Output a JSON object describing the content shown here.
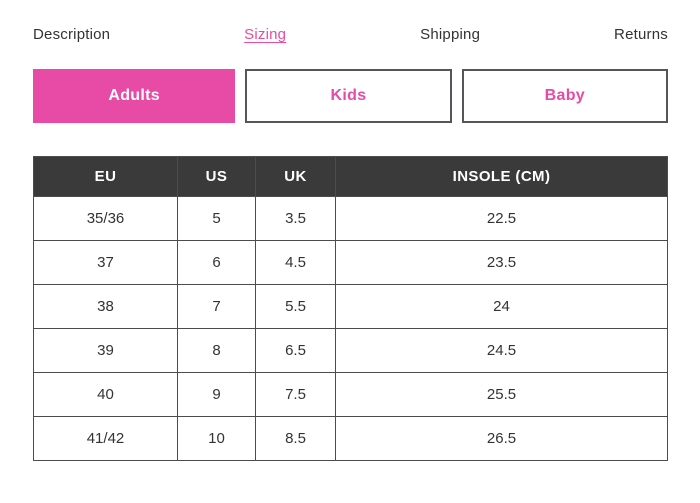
{
  "colors": {
    "accent_pink": "#e74ba6",
    "table_header_dark": "#3a3a3a",
    "table_border": "#4c4c4c",
    "body_text": "#333333"
  },
  "nav": {
    "items": [
      {
        "label": "Description",
        "active": false
      },
      {
        "label": "Sizing",
        "active": true
      },
      {
        "label": "Shipping",
        "active": false
      },
      {
        "label": "Returns",
        "active": false
      }
    ]
  },
  "size_tabs": {
    "buttons": [
      {
        "label": "Adults",
        "selected": true
      },
      {
        "label": "Kids",
        "selected": false
      },
      {
        "label": "Baby",
        "selected": false
      }
    ]
  },
  "table": {
    "headers": [
      "EU",
      "US",
      "UK",
      "INSOLE (CM)"
    ],
    "rows": [
      [
        "35/36",
        "5",
        "3.5",
        "22.5"
      ],
      [
        "37",
        "6",
        "4.5",
        "23.5"
      ],
      [
        "38",
        "7",
        "5.5",
        "24"
      ],
      [
        "39",
        "8",
        "6.5",
        "24.5"
      ],
      [
        "40",
        "9",
        "7.5",
        "25.5"
      ],
      [
        "41/42",
        "10",
        "8.5",
        "26.5"
      ]
    ]
  }
}
